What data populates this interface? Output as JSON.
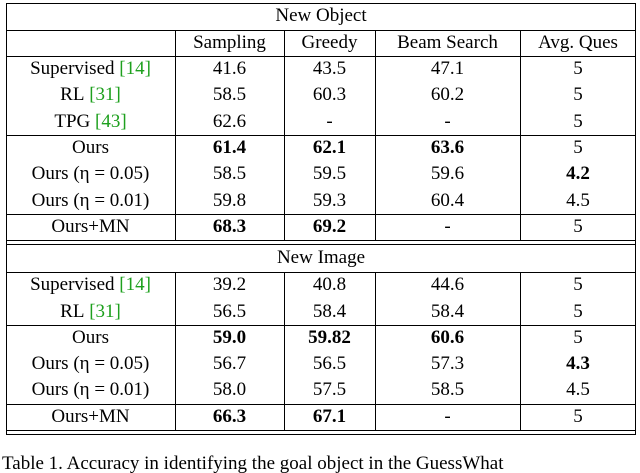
{
  "table": {
    "columns": [
      "Sampling",
      "Greedy",
      "Beam Search",
      "Avg. Ques"
    ],
    "sections": [
      {
        "title": "New Object",
        "groups": [
          {
            "rows": [
              {
                "method": "Supervised",
                "cite": "[14]",
                "values": [
                  "41.6",
                  "43.5",
                  "47.1",
                  "5"
                ],
                "bold": []
              },
              {
                "method": "RL",
                "cite": "[31]",
                "values": [
                  "58.5",
                  "60.3",
                  "60.2",
                  "5"
                ],
                "bold": []
              },
              {
                "method": "TPG",
                "cite": "[43]",
                "values": [
                  "62.6",
                  "-",
                  "-",
                  "5"
                ],
                "bold": []
              }
            ]
          },
          {
            "rows": [
              {
                "method": "Ours",
                "values": [
                  "61.4",
                  "62.1",
                  "63.6",
                  "5"
                ],
                "bold": [
                  0,
                  1,
                  2
                ]
              },
              {
                "method": "Ours (η = 0.05)",
                "values": [
                  "58.5",
                  "59.5",
                  "59.6",
                  "4.2"
                ],
                "bold": [
                  3
                ]
              },
              {
                "method": "Ours (η = 0.01)",
                "values": [
                  "59.8",
                  "59.3",
                  "60.4",
                  "4.5"
                ],
                "bold": []
              }
            ]
          },
          {
            "rows": [
              {
                "method": "Ours+MN",
                "values": [
                  "68.3",
                  "69.2",
                  "-",
                  "5"
                ],
                "bold": [
                  0,
                  1
                ]
              }
            ]
          }
        ]
      },
      {
        "title": "New Image",
        "groups": [
          {
            "rows": [
              {
                "method": "Supervised",
                "cite": "[14]",
                "values": [
                  "39.2",
                  "40.8",
                  "44.6",
                  "5"
                ],
                "bold": []
              },
              {
                "method": "RL",
                "cite": "[31]",
                "values": [
                  "56.5",
                  "58.4",
                  "58.4",
                  "5"
                ],
                "bold": []
              }
            ]
          },
          {
            "rows": [
              {
                "method": "Ours",
                "values": [
                  "59.0",
                  "59.82",
                  "60.6",
                  "5"
                ],
                "bold": [
                  0,
                  1,
                  2
                ]
              },
              {
                "method": "Ours (η = 0.05)",
                "values": [
                  "56.7",
                  "56.5",
                  "57.3",
                  "4.3"
                ],
                "bold": [
                  3
                ]
              },
              {
                "method": "Ours (η = 0.01)",
                "values": [
                  "58.0",
                  "57.5",
                  "58.5",
                  "4.5"
                ],
                "bold": []
              }
            ]
          },
          {
            "rows": [
              {
                "method": "Ours+MN",
                "values": [
                  "66.3",
                  "67.1",
                  "-",
                  "5"
                ],
                "bold": [
                  0,
                  1
                ]
              }
            ]
          }
        ]
      }
    ]
  },
  "caption": "Table 1. Accuracy in identifying the goal object in the GuessWhat"
}
